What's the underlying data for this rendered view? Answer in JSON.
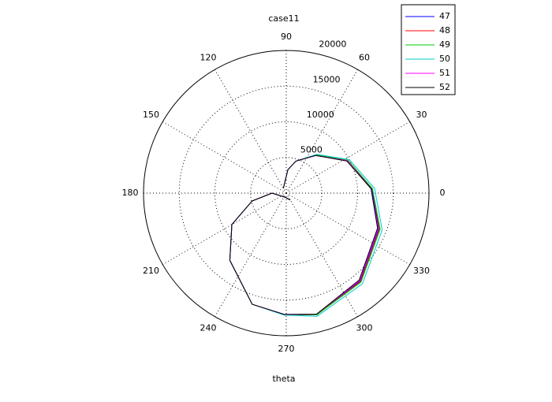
{
  "chart_data": {
    "type": "polar",
    "title": "case11",
    "xlabel": "theta",
    "thetaticks": [
      0,
      30,
      60,
      90,
      120,
      150,
      180,
      210,
      240,
      270,
      300,
      330
    ],
    "rlim": [
      0,
      20000
    ],
    "rticks": [
      5000,
      10000,
      15000,
      20000
    ],
    "grid": true,
    "legend": "upper right",
    "x": [
      300,
      250,
      180,
      193,
      210,
      230,
      253,
      269,
      284,
      310,
      339,
      3,
      28,
      52,
      73,
      86,
      120
    ],
    "series": [
      {
        "name": "47",
        "color": "#0000ff",
        "values": [
          1100,
          600,
          2000,
          4900,
          8800,
          12300,
          16300,
          17000,
          17600,
          16100,
          13900,
          12000,
          9700,
          6800,
          4700,
          3300,
          800
        ]
      },
      {
        "name": "48",
        "color": "#ff0000",
        "values": [
          1100,
          600,
          2000,
          4900,
          8800,
          12300,
          16300,
          17000,
          17600,
          16200,
          14000,
          12100,
          9800,
          6800,
          4700,
          3300,
          800
        ]
      },
      {
        "name": "49",
        "color": "#00cc00",
        "values": [
          1100,
          600,
          2000,
          4900,
          8800,
          12300,
          16300,
          17000,
          17600,
          16300,
          14100,
          12100,
          9800,
          6800,
          4700,
          3300,
          800
        ]
      },
      {
        "name": "50",
        "color": "#00cccc",
        "values": [
          1100,
          600,
          2000,
          4900,
          8800,
          12300,
          16300,
          17100,
          17800,
          16600,
          14400,
          12400,
          10000,
          6900,
          4700,
          3300,
          800
        ]
      },
      {
        "name": "51",
        "color": "#ff00ff",
        "values": [
          1100,
          600,
          2000,
          4900,
          8800,
          12300,
          16300,
          17000,
          17500,
          16000,
          13800,
          11900,
          9700,
          6700,
          4700,
          3300,
          800
        ]
      },
      {
        "name": "52",
        "color": "#000000",
        "values": [
          1100,
          600,
          2000,
          4900,
          8800,
          12300,
          16300,
          17000,
          17500,
          15900,
          13700,
          11900,
          9600,
          6700,
          4700,
          3300,
          800
        ]
      }
    ]
  }
}
